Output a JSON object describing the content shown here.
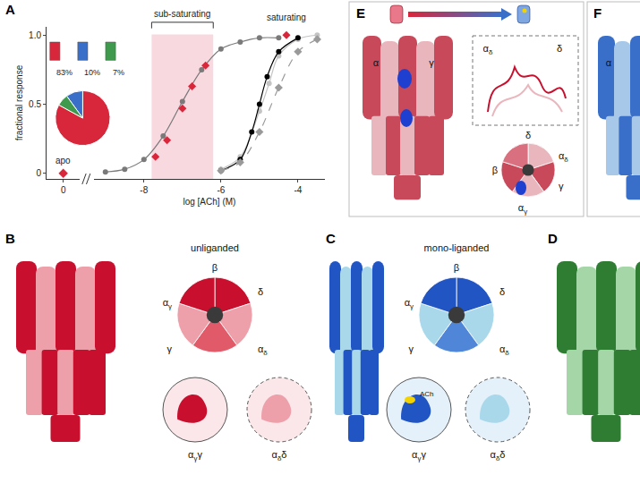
{
  "chart_data": {
    "type": "scatter",
    "xlabel": "log [ACh] (M)",
    "ylabel": "fractional response",
    "xlim": [
      -9.3,
      -3.3
    ],
    "xticks": [
      -8,
      -6,
      -4
    ],
    "ylim": [
      -0.04,
      1.06
    ],
    "yticks": [
      0,
      0.5,
      {
        "value": 1,
        "label": "1.0"
      }
    ],
    "grid": false,
    "apo": {
      "label": "apo",
      "x": 0,
      "y": 0,
      "xlim": [
        -0.6,
        0.6
      ],
      "xticks": [
        0
      ],
      "color": "#d8263b",
      "marker": "diamond"
    },
    "series": [
      {
        "x": [
          -9,
          -8.5,
          -8,
          -7.5,
          -7,
          -6.5,
          -6,
          -5.5,
          -5,
          -4.5
        ],
        "values": [
          0.01,
          0.03,
          0.1,
          0.27,
          0.52,
          0.75,
          0.9,
          0.95,
          0.98,
          0.98
        ],
        "color": "#7a7a7a",
        "marker": "circle",
        "line_style": "solid"
      },
      {
        "x": [
          -6,
          -5.5,
          -5,
          -4.75,
          -4.5,
          -4,
          -3.5
        ],
        "values": [
          0.03,
          0.12,
          0.45,
          0.65,
          0.85,
          0.97,
          1.0
        ],
        "color": "#c4c4c4",
        "marker": "circle",
        "line_style": "solid"
      },
      {
        "x": [
          -6,
          -5.5,
          -5.2,
          -5,
          -4.8,
          -4.5,
          -4
        ],
        "values": [
          0.02,
          0.1,
          0.3,
          0.5,
          0.7,
          0.88,
          0.98
        ],
        "color": "#000000",
        "marker": "circle",
        "line_style": "solid"
      },
      {
        "x": [
          -6,
          -5.5,
          -5,
          -4.5,
          -4,
          -3.5
        ],
        "values": [
          0.02,
          0.08,
          0.3,
          0.62,
          0.88,
          0.97
        ],
        "color": "#9a9a9a",
        "marker": "diamond",
        "line_style": "dash"
      },
      {
        "x": [
          -7.7,
          -7.4,
          -7,
          -6.75,
          -6.4,
          -4.3
        ],
        "values": [
          0.12,
          0.24,
          0.47,
          0.63,
          0.78,
          1.0
        ],
        "color": "#d8263b",
        "marker": "diamond",
        "line_style": "none"
      }
    ],
    "annotations": [
      {
        "text": "sub-saturating",
        "range": [
          -7.8,
          -6.2
        ]
      },
      {
        "text": "saturating",
        "x": -4.3
      }
    ],
    "pie": {
      "values": [
        83,
        10,
        7
      ],
      "value_labels": [
        "83%",
        "10%",
        "7%"
      ],
      "colors": [
        "#d8263b",
        "#3a6fc9",
        "#3f9a4e"
      ]
    }
  },
  "panels": {
    "A": {
      "letter": "A"
    },
    "B": {
      "letter": "B",
      "title": "unliganded",
      "map_labels": [
        "β",
        "δ",
        {
          "text": "α",
          "sub": "γ"
        },
        "γ",
        {
          "text": "α",
          "sub": "δ"
        }
      ],
      "zoom_labels": [
        {
          "text": "α",
          "sub": "γ",
          "after": "γ"
        },
        {
          "text": "α",
          "sub": "δ",
          "after": "δ"
        }
      ]
    },
    "C": {
      "letter": "C",
      "title": "mono-liganded",
      "map_labels": [
        "β",
        "δ",
        {
          "text": "α",
          "sub": "γ"
        },
        "γ",
        {
          "text": "α",
          "sub": "δ"
        }
      ],
      "zoom_labels": [
        {
          "text": "α",
          "sub": "γ",
          "after": "γ"
        },
        {
          "text": "α",
          "sub": "δ",
          "after": "δ"
        }
      ],
      "ligand_label": "ACh"
    },
    "D": {
      "letter": "D"
    },
    "E": {
      "letter": "E",
      "side_labels": [
        "α",
        "γ"
      ],
      "inset_labels": [
        {
          "text": "α",
          "sub": "δ"
        },
        "δ"
      ],
      "top_labels": [
        "δ",
        {
          "text": "α",
          "sub": "δ"
        },
        "β",
        "γ",
        {
          "text": "α",
          "sub": "γ"
        }
      ]
    },
    "F": {
      "letter": "F",
      "labels": [
        "α"
      ]
    }
  }
}
